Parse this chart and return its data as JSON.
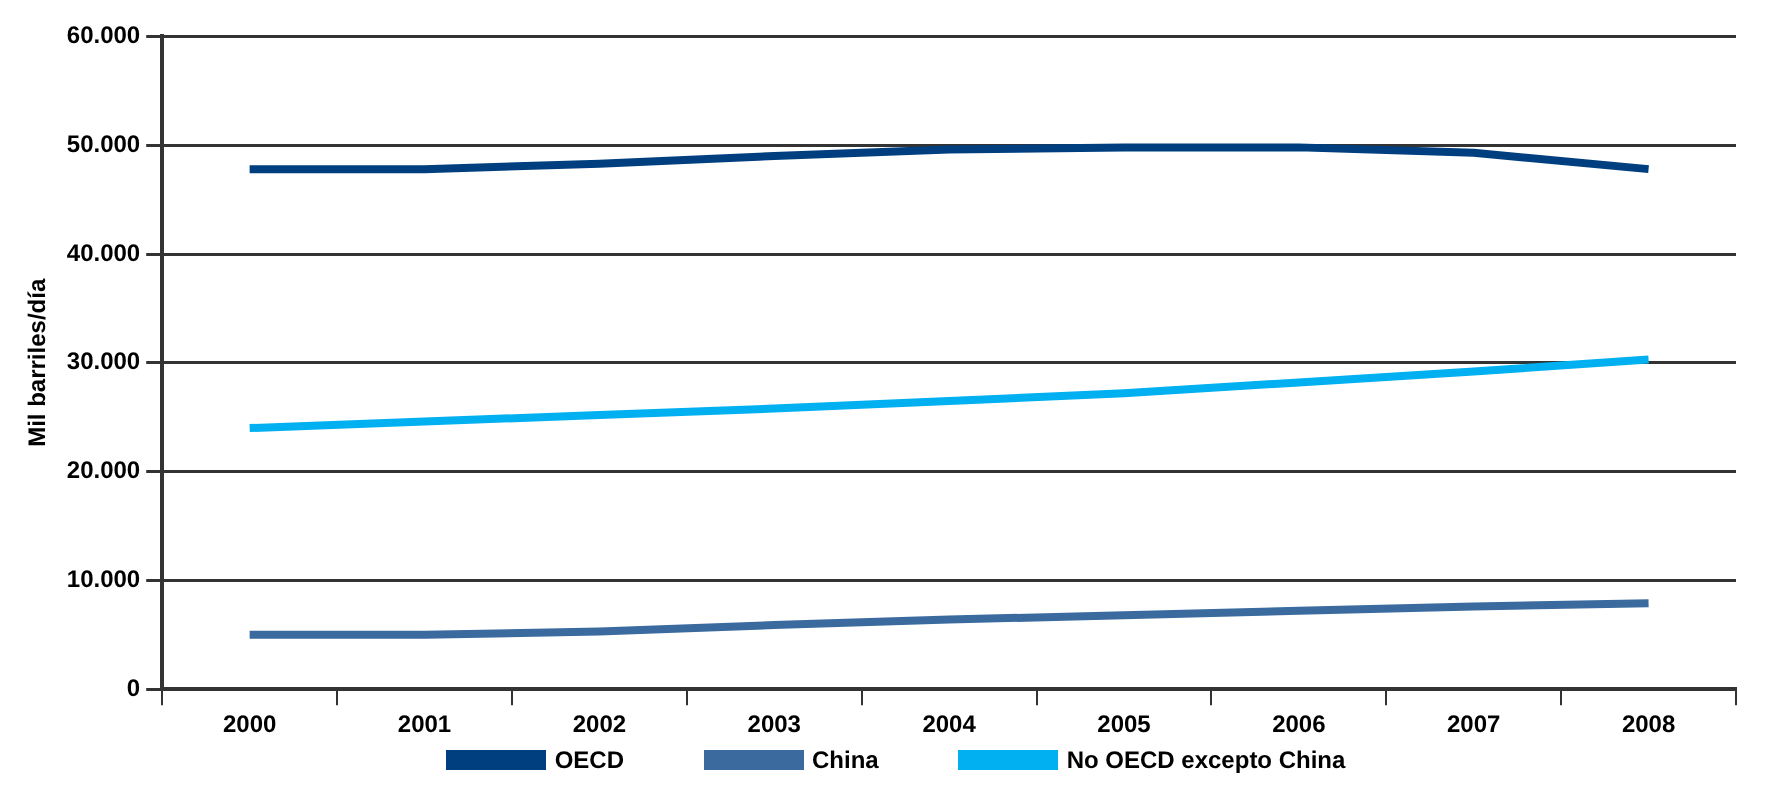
{
  "chart_data": {
    "type": "line",
    "ylabel": "Mil barriles/día",
    "categories": [
      "2000",
      "2001",
      "2002",
      "2003",
      "2004",
      "2005",
      "2006",
      "2007",
      "2008"
    ],
    "series": [
      {
        "name": "OECD",
        "color": "#003f7f",
        "values": [
          47800,
          47800,
          48300,
          49000,
          49600,
          49800,
          49800,
          49300,
          47800
        ]
      },
      {
        "name": "China",
        "color": "#3a6a9e",
        "values": [
          5000,
          5000,
          5300,
          5900,
          6400,
          6800,
          7200,
          7600,
          7900
        ]
      },
      {
        "name": "No OECD excepto China",
        "color": "#00b0f0",
        "values": [
          24000,
          24600,
          25200,
          25800,
          26500,
          27200,
          28200,
          29200,
          30300
        ]
      }
    ],
    "ylim": [
      0,
      60000
    ],
    "yticks": [
      {
        "value": 0,
        "label": "0"
      },
      {
        "value": 10000,
        "label": "10.000"
      },
      {
        "value": 20000,
        "label": "20.000"
      },
      {
        "value": 30000,
        "label": "30.000"
      },
      {
        "value": 40000,
        "label": "40.000"
      },
      {
        "value": 50000,
        "label": "50.000"
      },
      {
        "value": 60000,
        "label": "60.000"
      }
    ],
    "grid": "y",
    "legend": "bottom",
    "marker": "none",
    "line_style": "solid"
  }
}
